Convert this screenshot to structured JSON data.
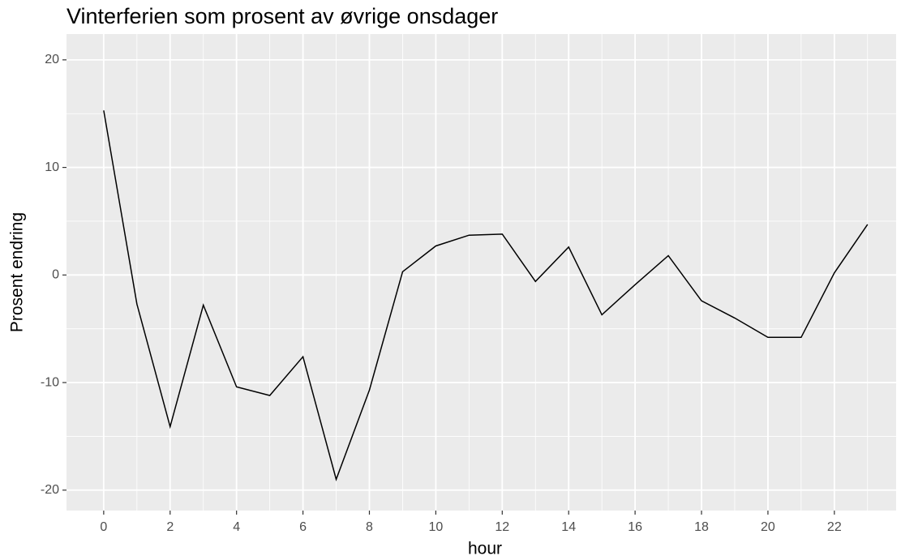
{
  "chart_data": {
    "type": "line",
    "title": "Vinterferien som prosent av øvrige onsdager",
    "x_label": "hour",
    "y_label": "Prosent endring",
    "x": [
      0,
      1,
      2,
      3,
      4,
      5,
      6,
      7,
      8,
      9,
      10,
      11,
      12,
      13,
      14,
      15,
      16,
      17,
      18,
      19,
      20,
      21,
      22,
      23
    ],
    "values": [
      15.3,
      -2.7,
      -14.1,
      -2.8,
      -10.4,
      -11.2,
      -7.6,
      -19.0,
      -10.7,
      0.3,
      2.7,
      3.7,
      3.8,
      -0.6,
      2.6,
      -3.7,
      -0.9,
      1.8,
      -2.4,
      -4.0,
      -5.8,
      -5.8,
      0.2,
      4.7
    ],
    "color": "#000000",
    "xlim": [
      -1.12,
      23.86
    ],
    "ylim": [
      -21.9,
      22.4
    ],
    "xticks": [
      0,
      2,
      4,
      6,
      8,
      10,
      12,
      14,
      16,
      18,
      20,
      22
    ],
    "yticks": [
      -20,
      -10,
      0,
      10,
      20
    ],
    "minor_xticks": [
      1,
      3,
      5,
      7,
      9,
      11,
      13,
      15,
      17,
      19,
      21,
      23
    ],
    "minor_yticks": [
      -15,
      -5,
      5,
      15
    ],
    "grid": true
  }
}
